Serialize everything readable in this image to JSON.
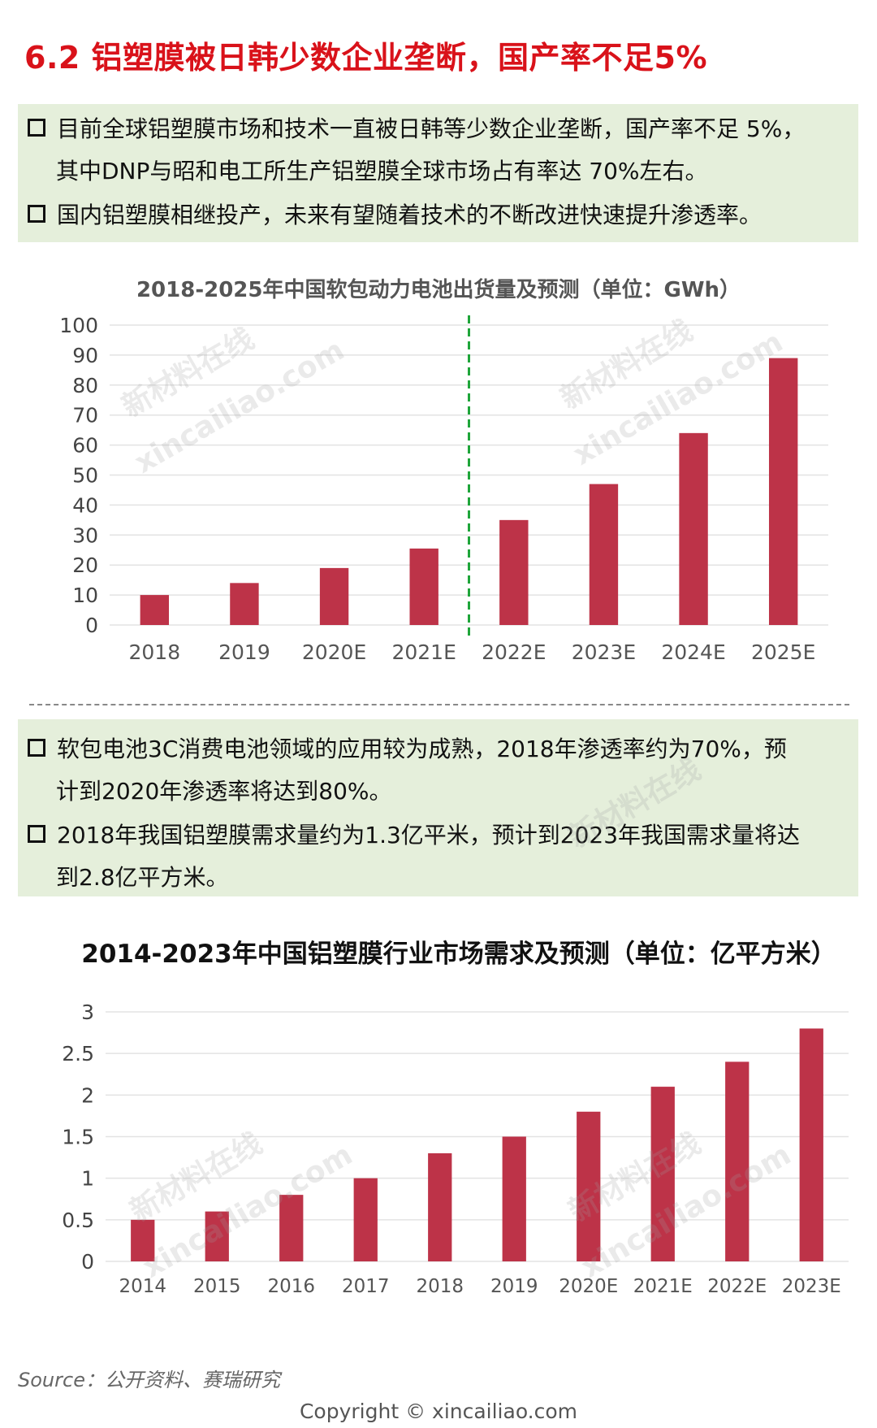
{
  "title": "6.2 铝塑膜被日韩少数企业垄断，国产率不足5%",
  "box1": {
    "bullet1_line1": "目前全球铝塑膜市场和技术一直被日韩等少数企业垄断，国产率不足 5%，",
    "bullet1_line2": "其中DNP与昭和电工所生产铝塑膜全球市场占有率达 70%左右。",
    "bullet2": "国内铝塑膜相继投产，未来有望随着技术的不断改进快速提升渗透率。"
  },
  "box2": {
    "bullet1_line1": "软包电池3C消费电池领域的应用较为成熟，2018年渗透率约为70%，预",
    "bullet1_line2": "计到2020年渗透率将达到80%。",
    "bullet2_line1": "2018年我国铝塑膜需求量约为1.3亿平米，预计到2023年我国需求量将达",
    "bullet2_line2": "到2.8亿平方米。"
  },
  "watermark": {
    "cn": "新材料在线",
    "en": "xincailiao.com"
  },
  "footer": {
    "source": "Source：公开资料、赛瑞研究",
    "copyright": "Copyright © xincailiao.com"
  },
  "colors": {
    "title": "#d9121a",
    "bar": "#bd3348",
    "divider": "#1fa53a",
    "box_bg": "#e5efdb"
  },
  "chart_data": [
    {
      "type": "bar",
      "title": "2018-2025年中国软包动力电池出货量及预测（单位：GWh）",
      "categories": [
        "2018",
        "2019",
        "2020E",
        "2021E",
        "2022E",
        "2023E",
        "2024E",
        "2025E"
      ],
      "values": [
        10,
        14,
        19,
        25.5,
        35,
        47,
        64,
        89
      ],
      "ylim": [
        0,
        100
      ],
      "yticks": [
        "0",
        "10",
        "20",
        "30",
        "40",
        "50",
        "60",
        "70",
        "80",
        "90",
        "100"
      ],
      "grid": true,
      "divider_after": "2021E"
    },
    {
      "type": "bar",
      "title": "2014-2023年中国铝塑膜行业市场需求及预测（单位：亿平方米）",
      "categories": [
        "2014",
        "2015",
        "2016",
        "2017",
        "2018",
        "2019",
        "2020E",
        "2021E",
        "2022E",
        "2023E"
      ],
      "values": [
        0.5,
        0.6,
        0.8,
        1.0,
        1.3,
        1.5,
        1.8,
        2.1,
        2.4,
        2.8
      ],
      "ylim": [
        0,
        3
      ],
      "yticks": [
        "0",
        "0.5",
        "1",
        "1.5",
        "2",
        "2.5",
        "3"
      ],
      "grid": true
    }
  ]
}
